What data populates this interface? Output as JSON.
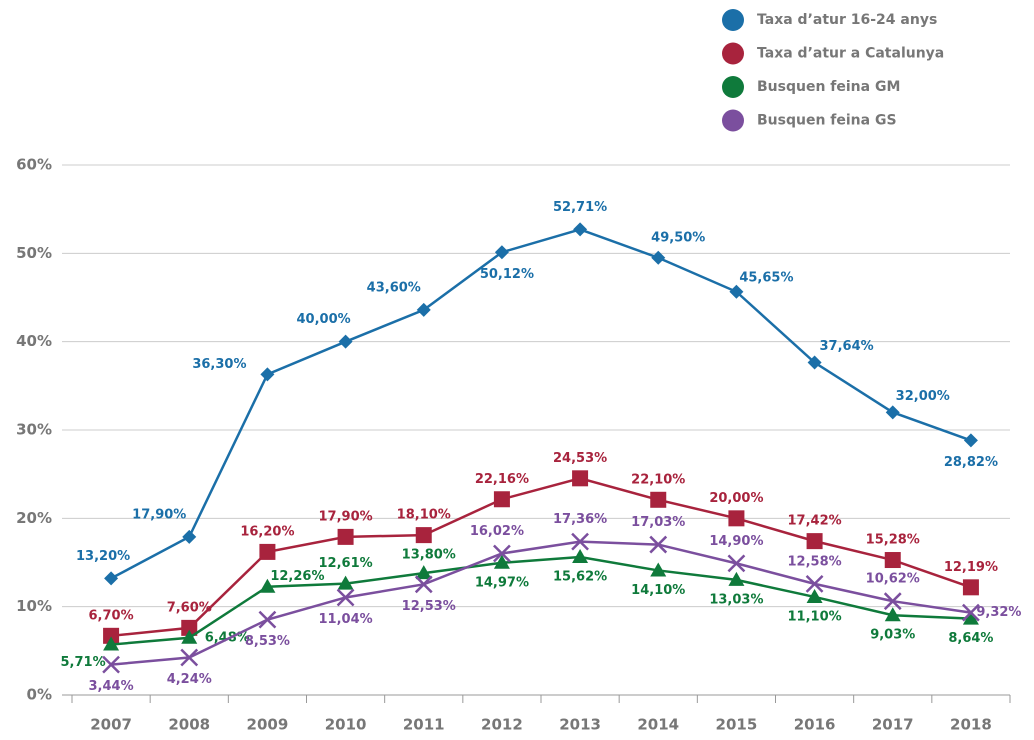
{
  "chart_data": {
    "type": "line",
    "categories": [
      "2007",
      "2008",
      "2009",
      "2010",
      "2011",
      "2012",
      "2013",
      "2014",
      "2015",
      "2016",
      "2017",
      "2018"
    ],
    "ylim": [
      0,
      60
    ],
    "yticks": [
      {
        "value": 0,
        "label": "0%"
      },
      {
        "value": 10,
        "label": "10%"
      },
      {
        "value": 20,
        "label": "20%"
      },
      {
        "value": 30,
        "label": "30%"
      },
      {
        "value": 40,
        "label": "40%"
      },
      {
        "value": 50,
        "label": "50%"
      },
      {
        "value": 60,
        "label": "60%"
      }
    ],
    "grid": true,
    "legend": "top-right",
    "series": [
      {
        "name": "Taxa d’atur 16-24 anys",
        "color": "#1b6fa8",
        "marker": "diamond",
        "values": [
          13.2,
          17.9,
          36.3,
          40.0,
          43.6,
          50.12,
          52.71,
          49.5,
          45.65,
          37.64,
          32.0,
          28.82
        ],
        "value_labels": [
          "13,20%",
          "17,90%",
          "36,30%",
          "40,00%",
          "43,60%",
          "50,12%",
          "52,71%",
          "49,50%",
          "45,65%",
          "37,64%",
          "32,00%",
          "28,82%"
        ]
      },
      {
        "name": "Taxa d’atur a Catalunya",
        "color": "#a8233d",
        "marker": "square",
        "values": [
          6.7,
          7.6,
          16.2,
          17.9,
          18.1,
          22.16,
          24.53,
          22.1,
          20.0,
          17.42,
          15.28,
          12.19
        ],
        "value_labels": [
          "6,70%",
          "7,60%",
          "16,20%",
          "17,90%",
          "18,10%",
          "22,16%",
          "24,53%",
          "22,10%",
          "20,00%",
          "17,42%",
          "15,28%",
          "12,19%"
        ]
      },
      {
        "name": "Busquen feina GM",
        "color": "#0f7a3b",
        "marker": "triangle",
        "values": [
          5.71,
          6.48,
          12.26,
          12.61,
          13.8,
          14.97,
          15.62,
          14.1,
          13.03,
          11.1,
          9.03,
          8.64
        ],
        "value_labels": [
          "5,71%",
          "6,48%",
          "12,26%",
          "12,61%",
          "13,80%",
          "14,97%",
          "15,62%",
          "14,10%",
          "13,03%",
          "11,10%",
          "9,03%",
          "8,64%"
        ]
      },
      {
        "name": "Busquen feina GS",
        "color": "#7b4f9e",
        "marker": "cross",
        "values": [
          3.44,
          4.24,
          8.53,
          11.04,
          12.53,
          16.02,
          17.36,
          17.03,
          14.9,
          12.58,
          10.62,
          9.32
        ],
        "value_labels": [
          "3,44%",
          "4,24%",
          "8,53%",
          "11,04%",
          "12,53%",
          "16,02%",
          "17,36%",
          "17,03%",
          "14,90%",
          "12,58%",
          "10,62%",
          "9,32%"
        ]
      }
    ]
  }
}
